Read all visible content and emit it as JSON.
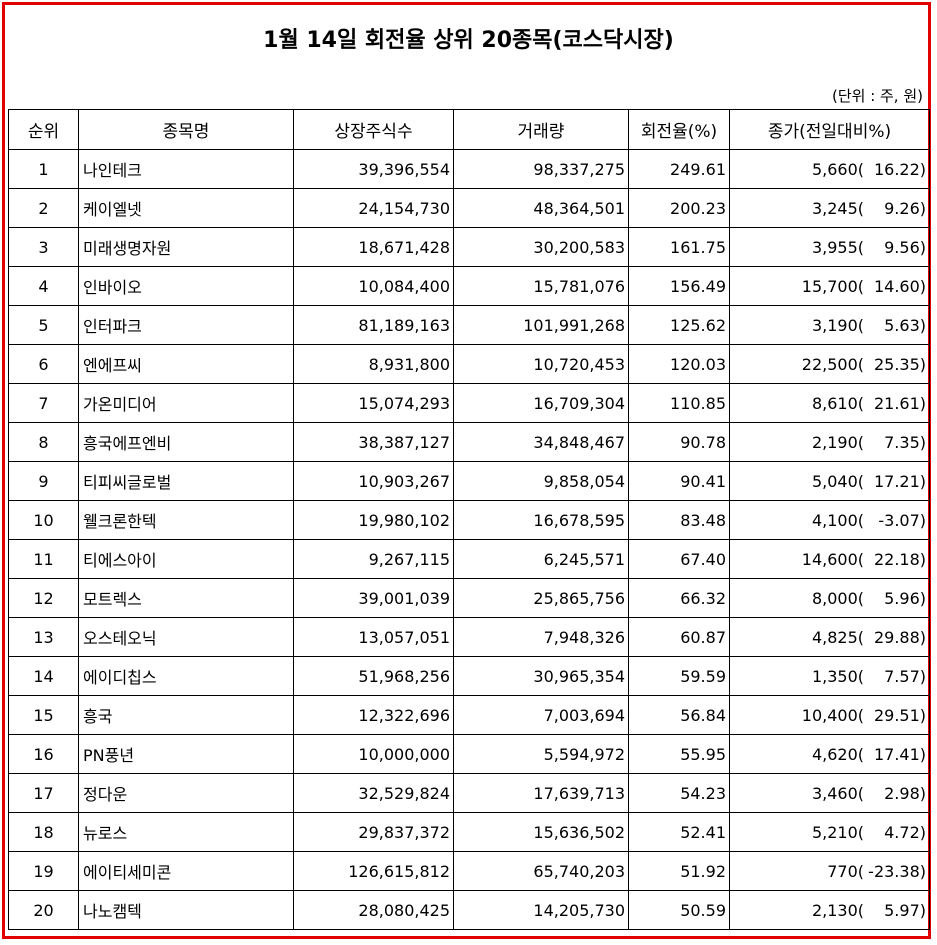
{
  "title": "1월 14일 회전율 상위 20종목(코스닥시장)",
  "unit_note": "(단위 : 주, 원)",
  "columns": [
    "순위",
    "종목명",
    "상장주식수",
    "거래량",
    "회전율(%)",
    "종가(전일대비%)"
  ],
  "rows": [
    {
      "rank": "1",
      "name": "나인테크",
      "listed": "39,396,554",
      "volume": "98,337,275",
      "turnover": "249.61",
      "price": "5,660(",
      "change": "16.22)"
    },
    {
      "rank": "2",
      "name": "케이엘넷",
      "listed": "24,154,730",
      "volume": "48,364,501",
      "turnover": "200.23",
      "price": "3,245(",
      "change": "9.26)"
    },
    {
      "rank": "3",
      "name": "미래생명자원",
      "listed": "18,671,428",
      "volume": "30,200,583",
      "turnover": "161.75",
      "price": "3,955(",
      "change": "9.56)"
    },
    {
      "rank": "4",
      "name": "인바이오",
      "listed": "10,084,400",
      "volume": "15,781,076",
      "turnover": "156.49",
      "price": "15,700(",
      "change": "14.60)"
    },
    {
      "rank": "5",
      "name": "인터파크",
      "listed": "81,189,163",
      "volume": "101,991,268",
      "turnover": "125.62",
      "price": "3,190(",
      "change": "5.63)"
    },
    {
      "rank": "6",
      "name": "엔에프씨",
      "listed": "8,931,800",
      "volume": "10,720,453",
      "turnover": "120.03",
      "price": "22,500(",
      "change": "25.35)"
    },
    {
      "rank": "7",
      "name": "가온미디어",
      "listed": "15,074,293",
      "volume": "16,709,304",
      "turnover": "110.85",
      "price": "8,610(",
      "change": "21.61)"
    },
    {
      "rank": "8",
      "name": "흥국에프엔비",
      "listed": "38,387,127",
      "volume": "34,848,467",
      "turnover": "90.78",
      "price": "2,190(",
      "change": "7.35)"
    },
    {
      "rank": "9",
      "name": "티피씨글로벌",
      "listed": "10,903,267",
      "volume": "9,858,054",
      "turnover": "90.41",
      "price": "5,040(",
      "change": "17.21)"
    },
    {
      "rank": "10",
      "name": "웰크론한텍",
      "listed": "19,980,102",
      "volume": "16,678,595",
      "turnover": "83.48",
      "price": "4,100(",
      "change": "-3.07)"
    },
    {
      "rank": "11",
      "name": "티에스아이",
      "listed": "9,267,115",
      "volume": "6,245,571",
      "turnover": "67.40",
      "price": "14,600(",
      "change": "22.18)"
    },
    {
      "rank": "12",
      "name": "모트렉스",
      "listed": "39,001,039",
      "volume": "25,865,756",
      "turnover": "66.32",
      "price": "8,000(",
      "change": "5.96)"
    },
    {
      "rank": "13",
      "name": "오스테오닉",
      "listed": "13,057,051",
      "volume": "7,948,326",
      "turnover": "60.87",
      "price": "4,825(",
      "change": "29.88)"
    },
    {
      "rank": "14",
      "name": "에이디칩스",
      "listed": "51,968,256",
      "volume": "30,965,354",
      "turnover": "59.59",
      "price": "1,350(",
      "change": "7.57)"
    },
    {
      "rank": "15",
      "name": "흥국",
      "listed": "12,322,696",
      "volume": "7,003,694",
      "turnover": "56.84",
      "price": "10,400(",
      "change": "29.51)"
    },
    {
      "rank": "16",
      "name": "PN풍년",
      "listed": "10,000,000",
      "volume": "5,594,972",
      "turnover": "55.95",
      "price": "4,620(",
      "change": "17.41)"
    },
    {
      "rank": "17",
      "name": "정다운",
      "listed": "32,529,824",
      "volume": "17,639,713",
      "turnover": "54.23",
      "price": "3,460(",
      "change": "2.98)"
    },
    {
      "rank": "18",
      "name": "뉴로스",
      "listed": "29,837,372",
      "volume": "15,636,502",
      "turnover": "52.41",
      "price": "5,210(",
      "change": "4.72)"
    },
    {
      "rank": "19",
      "name": "에이티세미콘",
      "listed": "126,615,812",
      "volume": "65,740,203",
      "turnover": "51.92",
      "price": "770(",
      "change": "-23.38)"
    },
    {
      "rank": "20",
      "name": "나노캠텍",
      "listed": "28,080,425",
      "volume": "14,205,730",
      "turnover": "50.59",
      "price": "2,130(",
      "change": "5.97)"
    }
  ],
  "colors": {
    "frame": "#e00000",
    "grid": "#000000"
  }
}
